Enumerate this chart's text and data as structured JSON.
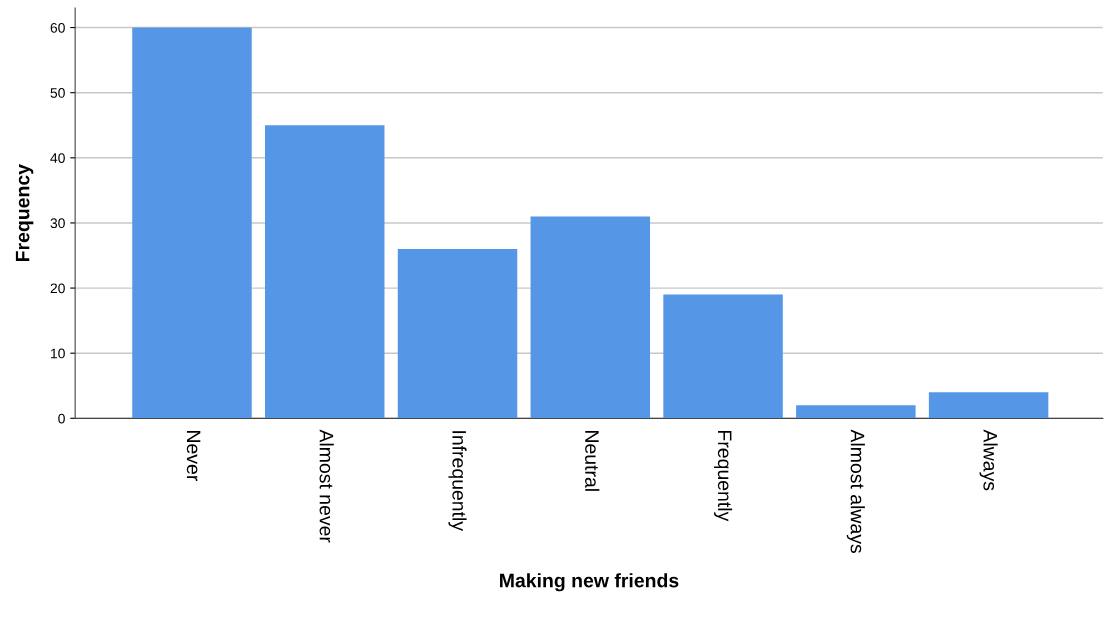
{
  "chart_data": {
    "type": "bar",
    "xlabel": "Making new friends",
    "ylabel": "Frequency",
    "categories": [
      "Never",
      "Almost never",
      "Infrequently",
      "Neutral",
      "Frequently",
      "Almost always",
      "Always"
    ],
    "values": [
      60,
      45,
      26,
      31,
      19,
      2,
      4
    ],
    "color": "#5597e6",
    "ylim": [
      0,
      63
    ],
    "yticks": [
      0,
      10,
      20,
      30,
      40,
      50,
      60
    ],
    "grid": "y",
    "legend": false
  }
}
